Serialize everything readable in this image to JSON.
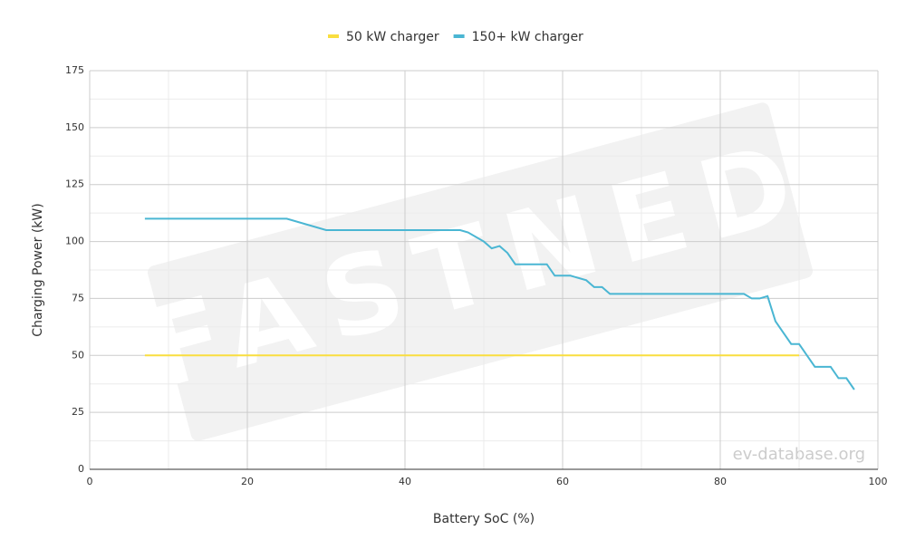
{
  "chart_data": {
    "type": "line",
    "x_label": "Battery SoC (%)",
    "y_label": "Charging Power (kW)",
    "watermark": "ev-database.org",
    "logo_watermark": "FASTNED",
    "xlim": [
      0,
      100
    ],
    "xticks": [
      0,
      20,
      40,
      60,
      80,
      100
    ],
    "ylim": [
      0,
      175
    ],
    "yticks": [
      0,
      25,
      50,
      75,
      100,
      125,
      150,
      175
    ],
    "grid": true,
    "legend": "top",
    "series": [
      {
        "name": "50 kW charger",
        "color": "#f9de3f",
        "x": [
          7,
          90
        ],
        "values": [
          50,
          50
        ]
      },
      {
        "name": "150+ kW charger",
        "color": "#4ab6d3",
        "x": [
          7,
          25,
          30,
          47,
          48,
          50,
          51,
          52,
          53,
          54,
          55,
          57,
          58,
          59,
          61,
          63,
          64,
          65,
          66,
          70,
          83,
          84,
          85,
          86,
          87,
          88,
          89,
          90,
          91,
          92,
          93,
          94,
          95,
          96,
          97
        ],
        "values": [
          110,
          110,
          105,
          105,
          104,
          100,
          97,
          98,
          95,
          90,
          90,
          90,
          90,
          85,
          85,
          83,
          80,
          80,
          77,
          77,
          77,
          75,
          75,
          76,
          65,
          60,
          55,
          55,
          50,
          45,
          45,
          45,
          40,
          40,
          35
        ]
      }
    ]
  }
}
